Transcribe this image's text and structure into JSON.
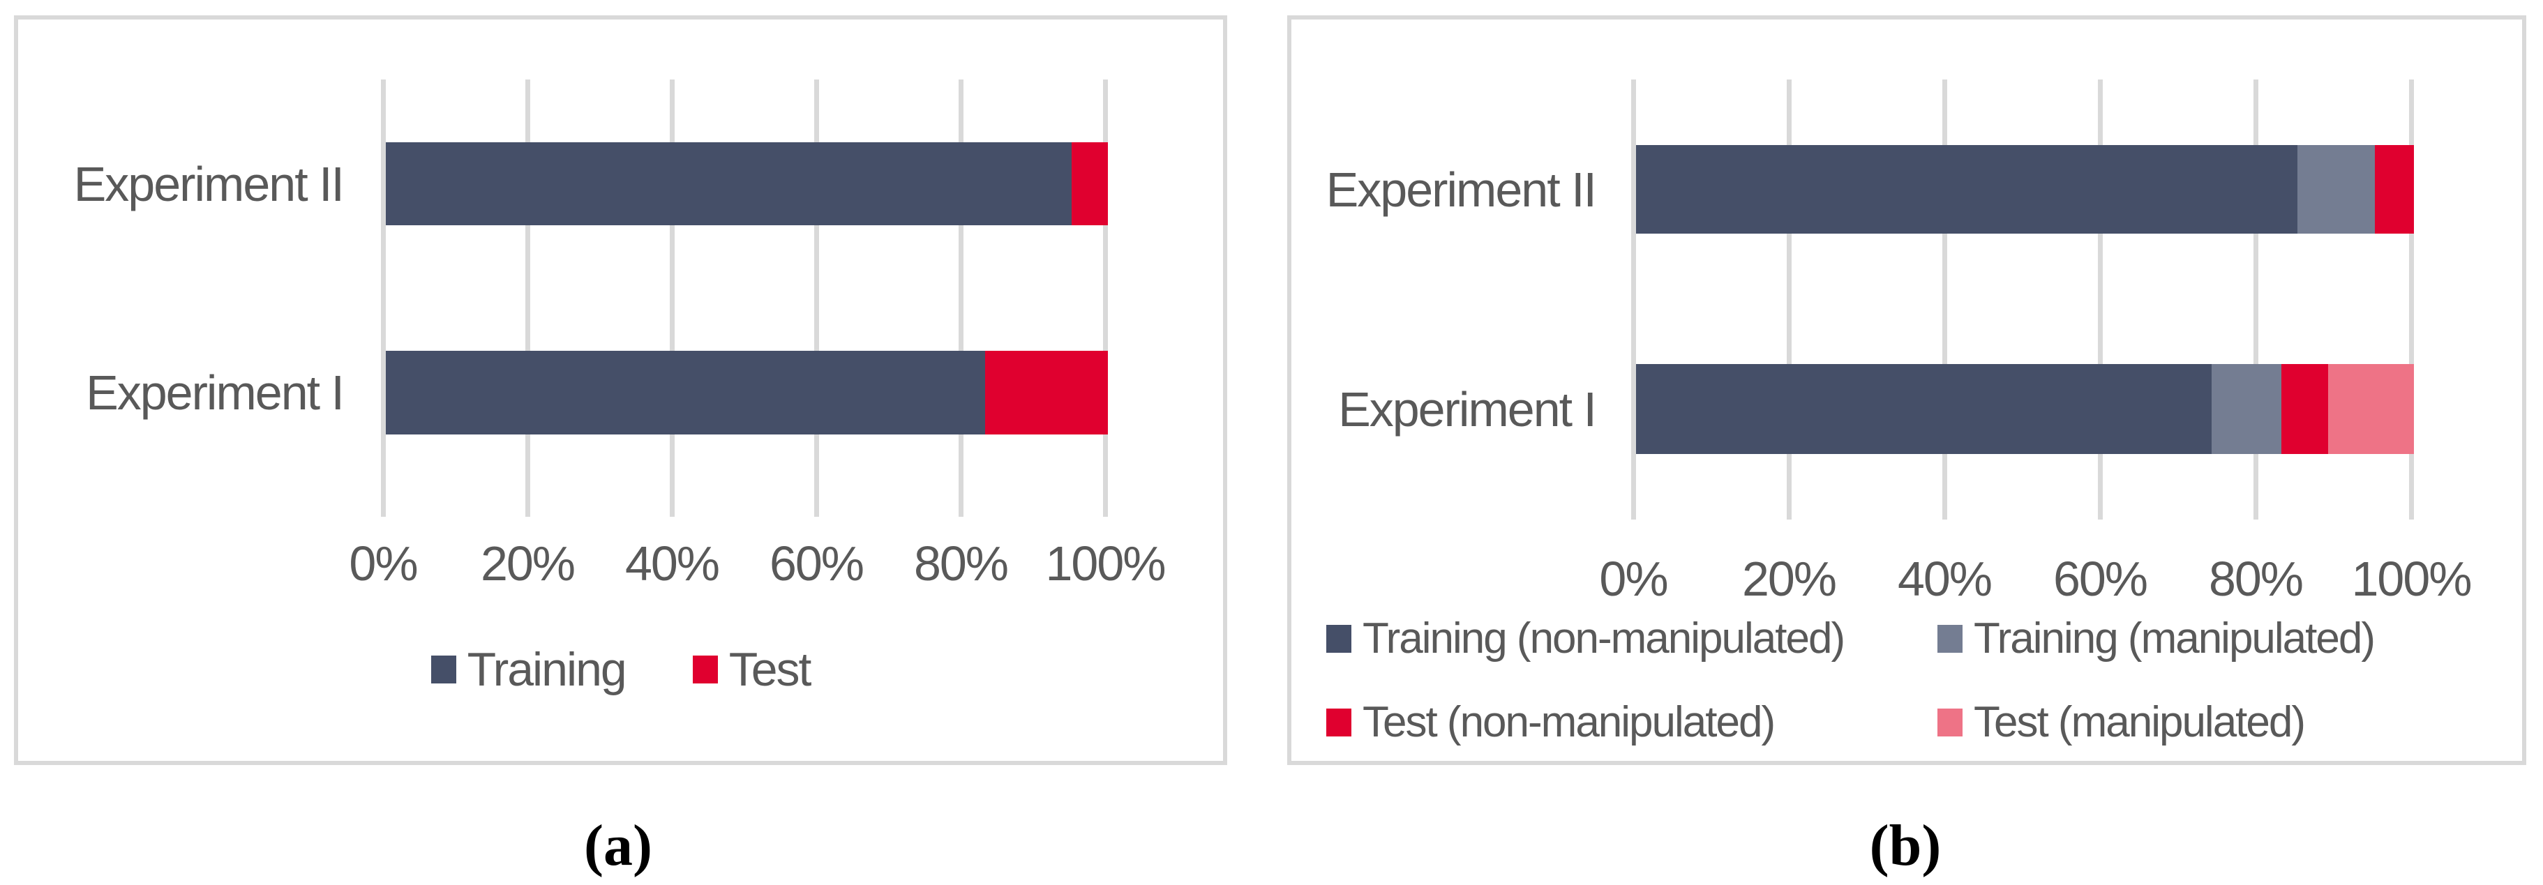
{
  "palette": {
    "gridline": "#D9D9D9",
    "panel_border": "#D9D9D9",
    "axis_text": "#595959",
    "caption_text": "#000000",
    "navy": "#454F68",
    "gray_blue": "#747D92",
    "red": "#E0002F",
    "pink": "#EE7386"
  },
  "chart_data": [
    {
      "id": "a",
      "type": "bar",
      "orientation": "horizontal-stacked",
      "caption": "(a)",
      "title": "",
      "categories": [
        "Experiment II",
        "Experiment I"
      ],
      "series": [
        {
          "name": "Training",
          "color": "#454F68",
          "values": [
            95,
            83
          ]
        },
        {
          "name": "Test",
          "color": "#E0002F",
          "values": [
            5,
            17
          ]
        }
      ],
      "x_tick_labels": [
        "0%",
        "20%",
        "40%",
        "60%",
        "80%",
        "100%"
      ],
      "xlim": [
        0,
        100
      ],
      "xlabel": "",
      "ylabel": "",
      "grid": true,
      "legend_position": "bottom"
    },
    {
      "id": "b",
      "type": "bar",
      "orientation": "horizontal-stacked",
      "caption": "(b)",
      "title": "",
      "categories": [
        "Experiment II",
        "Experiment I"
      ],
      "series": [
        {
          "name": "Training (non-manipulated)",
          "color": "#454F68",
          "values": [
            85,
            74
          ]
        },
        {
          "name": "Training (manipulated)",
          "color": "#747D92",
          "values": [
            10,
            9
          ]
        },
        {
          "name": "Test (non-manipulated)",
          "color": "#E0002F",
          "values": [
            5,
            6
          ]
        },
        {
          "name": "Test (manipulated)",
          "color": "#EE7386",
          "values": [
            0,
            11
          ]
        }
      ],
      "x_tick_labels": [
        "0%",
        "20%",
        "40%",
        "60%",
        "80%",
        "100%"
      ],
      "xlim": [
        0,
        100
      ],
      "xlabel": "",
      "ylabel": "",
      "grid": true,
      "legend_position": "bottom"
    }
  ]
}
